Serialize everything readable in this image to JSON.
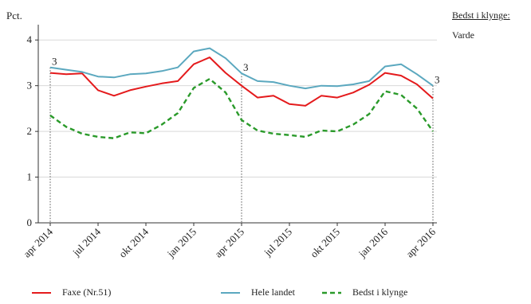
{
  "chart_data": {
    "type": "line",
    "ylabel": "Pct.",
    "ylim": [
      0,
      4.3
    ],
    "yticks": [
      0,
      1,
      2,
      3,
      4
    ],
    "grid": "horizontal",
    "x": [
      "2014-04",
      "2014-05",
      "2014-06",
      "2014-07",
      "2014-08",
      "2014-09",
      "2014-10",
      "2014-11",
      "2014-12",
      "2015-01",
      "2015-02",
      "2015-03",
      "2015-04",
      "2015-05",
      "2015-06",
      "2015-07",
      "2015-08",
      "2015-09",
      "2015-10",
      "2015-11",
      "2015-12",
      "2016-01",
      "2016-02",
      "2016-03",
      "2016-04"
    ],
    "xtick_labels": [
      "apr 2014",
      "jul 2014",
      "okt 2014",
      "jan 2015",
      "apr 2015",
      "jul 2015",
      "okt 2015",
      "jan 2016",
      "apr 2016"
    ],
    "series": [
      {
        "name": "Faxe (Nr.51)",
        "color": "#e41a1c",
        "style": "solid",
        "values": [
          3.28,
          3.25,
          3.27,
          2.9,
          2.78,
          2.9,
          2.98,
          3.05,
          3.1,
          3.47,
          3.62,
          3.28,
          3.0,
          2.74,
          2.78,
          2.6,
          2.56,
          2.78,
          2.74,
          2.85,
          3.02,
          3.28,
          3.22,
          3.03,
          2.72
        ]
      },
      {
        "name": "Hele landet",
        "color": "#5ba8bf",
        "style": "solid",
        "values": [
          3.4,
          3.35,
          3.3,
          3.2,
          3.18,
          3.25,
          3.27,
          3.32,
          3.4,
          3.75,
          3.82,
          3.6,
          3.27,
          3.1,
          3.08,
          3.0,
          2.94,
          3.0,
          2.99,
          3.03,
          3.1,
          3.42,
          3.47,
          3.25,
          3.0
        ]
      },
      {
        "name": "Bedst i klynge",
        "color": "#2a9a2a",
        "style": "dashed",
        "values": [
          2.35,
          2.1,
          1.95,
          1.88,
          1.85,
          1.98,
          1.96,
          2.15,
          2.4,
          2.95,
          3.15,
          2.85,
          2.25,
          2.02,
          1.95,
          1.92,
          1.88,
          2.02,
          2.0,
          2.15,
          2.38,
          2.88,
          2.8,
          2.5,
          2.0
        ]
      }
    ],
    "annotations": [
      {
        "x": "2014-04",
        "label": "3"
      },
      {
        "x": "2015-04",
        "label": "3"
      },
      {
        "x": "2016-04",
        "label": "3"
      }
    ],
    "legend_position": "bottom"
  },
  "side_panel": {
    "title": "Bedst i klynge:",
    "item": "Varde"
  }
}
